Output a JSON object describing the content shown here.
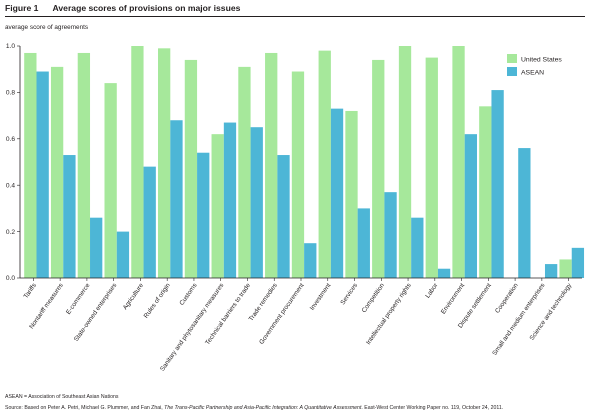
{
  "figure": {
    "number": "Figure 1",
    "title": "Average scores of provisions on major issues"
  },
  "chart_data": {
    "type": "bar",
    "title": "Average scores of provisions on major issues",
    "ylabel": "average score of agreements",
    "ylim": [
      0,
      1.0
    ],
    "yticks": [
      "0.0",
      "0.2",
      "0.4",
      "0.6",
      "0.8",
      "1.0"
    ],
    "grid": false,
    "legend_position": "top-right",
    "categories": [
      "Tariffs",
      "Nontariff measures",
      "E-commerce",
      "State-owned enterprises",
      "Agriculture",
      "Rules of origin",
      "Customs",
      "Sanitary and phytosanitary measures",
      "Technical barriers to trade",
      "Trade remedies",
      "Government procurement",
      "Investment",
      "Services",
      "Competition",
      "Intellectual property rights",
      "Labor",
      "Environment",
      "Dispute settlement",
      "Cooperation",
      "Small and medium enterprises",
      "Science and technology"
    ],
    "series": [
      {
        "name": "United States",
        "color": "#a6e89b",
        "values": [
          0.97,
          0.91,
          0.97,
          0.84,
          1.0,
          0.99,
          0.94,
          0.62,
          0.91,
          0.97,
          0.89,
          0.98,
          0.72,
          0.94,
          1.0,
          0.95,
          1.0,
          0.74,
          0.0,
          0.0,
          0.08
        ]
      },
      {
        "name": "ASEAN",
        "color": "#4db6d6",
        "values": [
          0.89,
          0.53,
          0.26,
          0.2,
          0.48,
          0.68,
          0.54,
          0.67,
          0.65,
          0.53,
          0.15,
          0.73,
          0.3,
          0.37,
          0.26,
          0.04,
          0.62,
          0.81,
          0.56,
          0.06,
          0.13
        ]
      }
    ]
  },
  "footnotes": {
    "abbreviation": "ASEAN = Association of Southeast Asian Nations",
    "source_prefix": "Source: Based on Peter A. Petri, Michael G. Plummer, and Fan Zhai, ",
    "source_title": "The Trans-Pacific Partnership and Asia-Pacific Integration: A Quantitative Assessment",
    "source_suffix": ". East-West Center Working Paper no. 119, October 24, 2011."
  }
}
